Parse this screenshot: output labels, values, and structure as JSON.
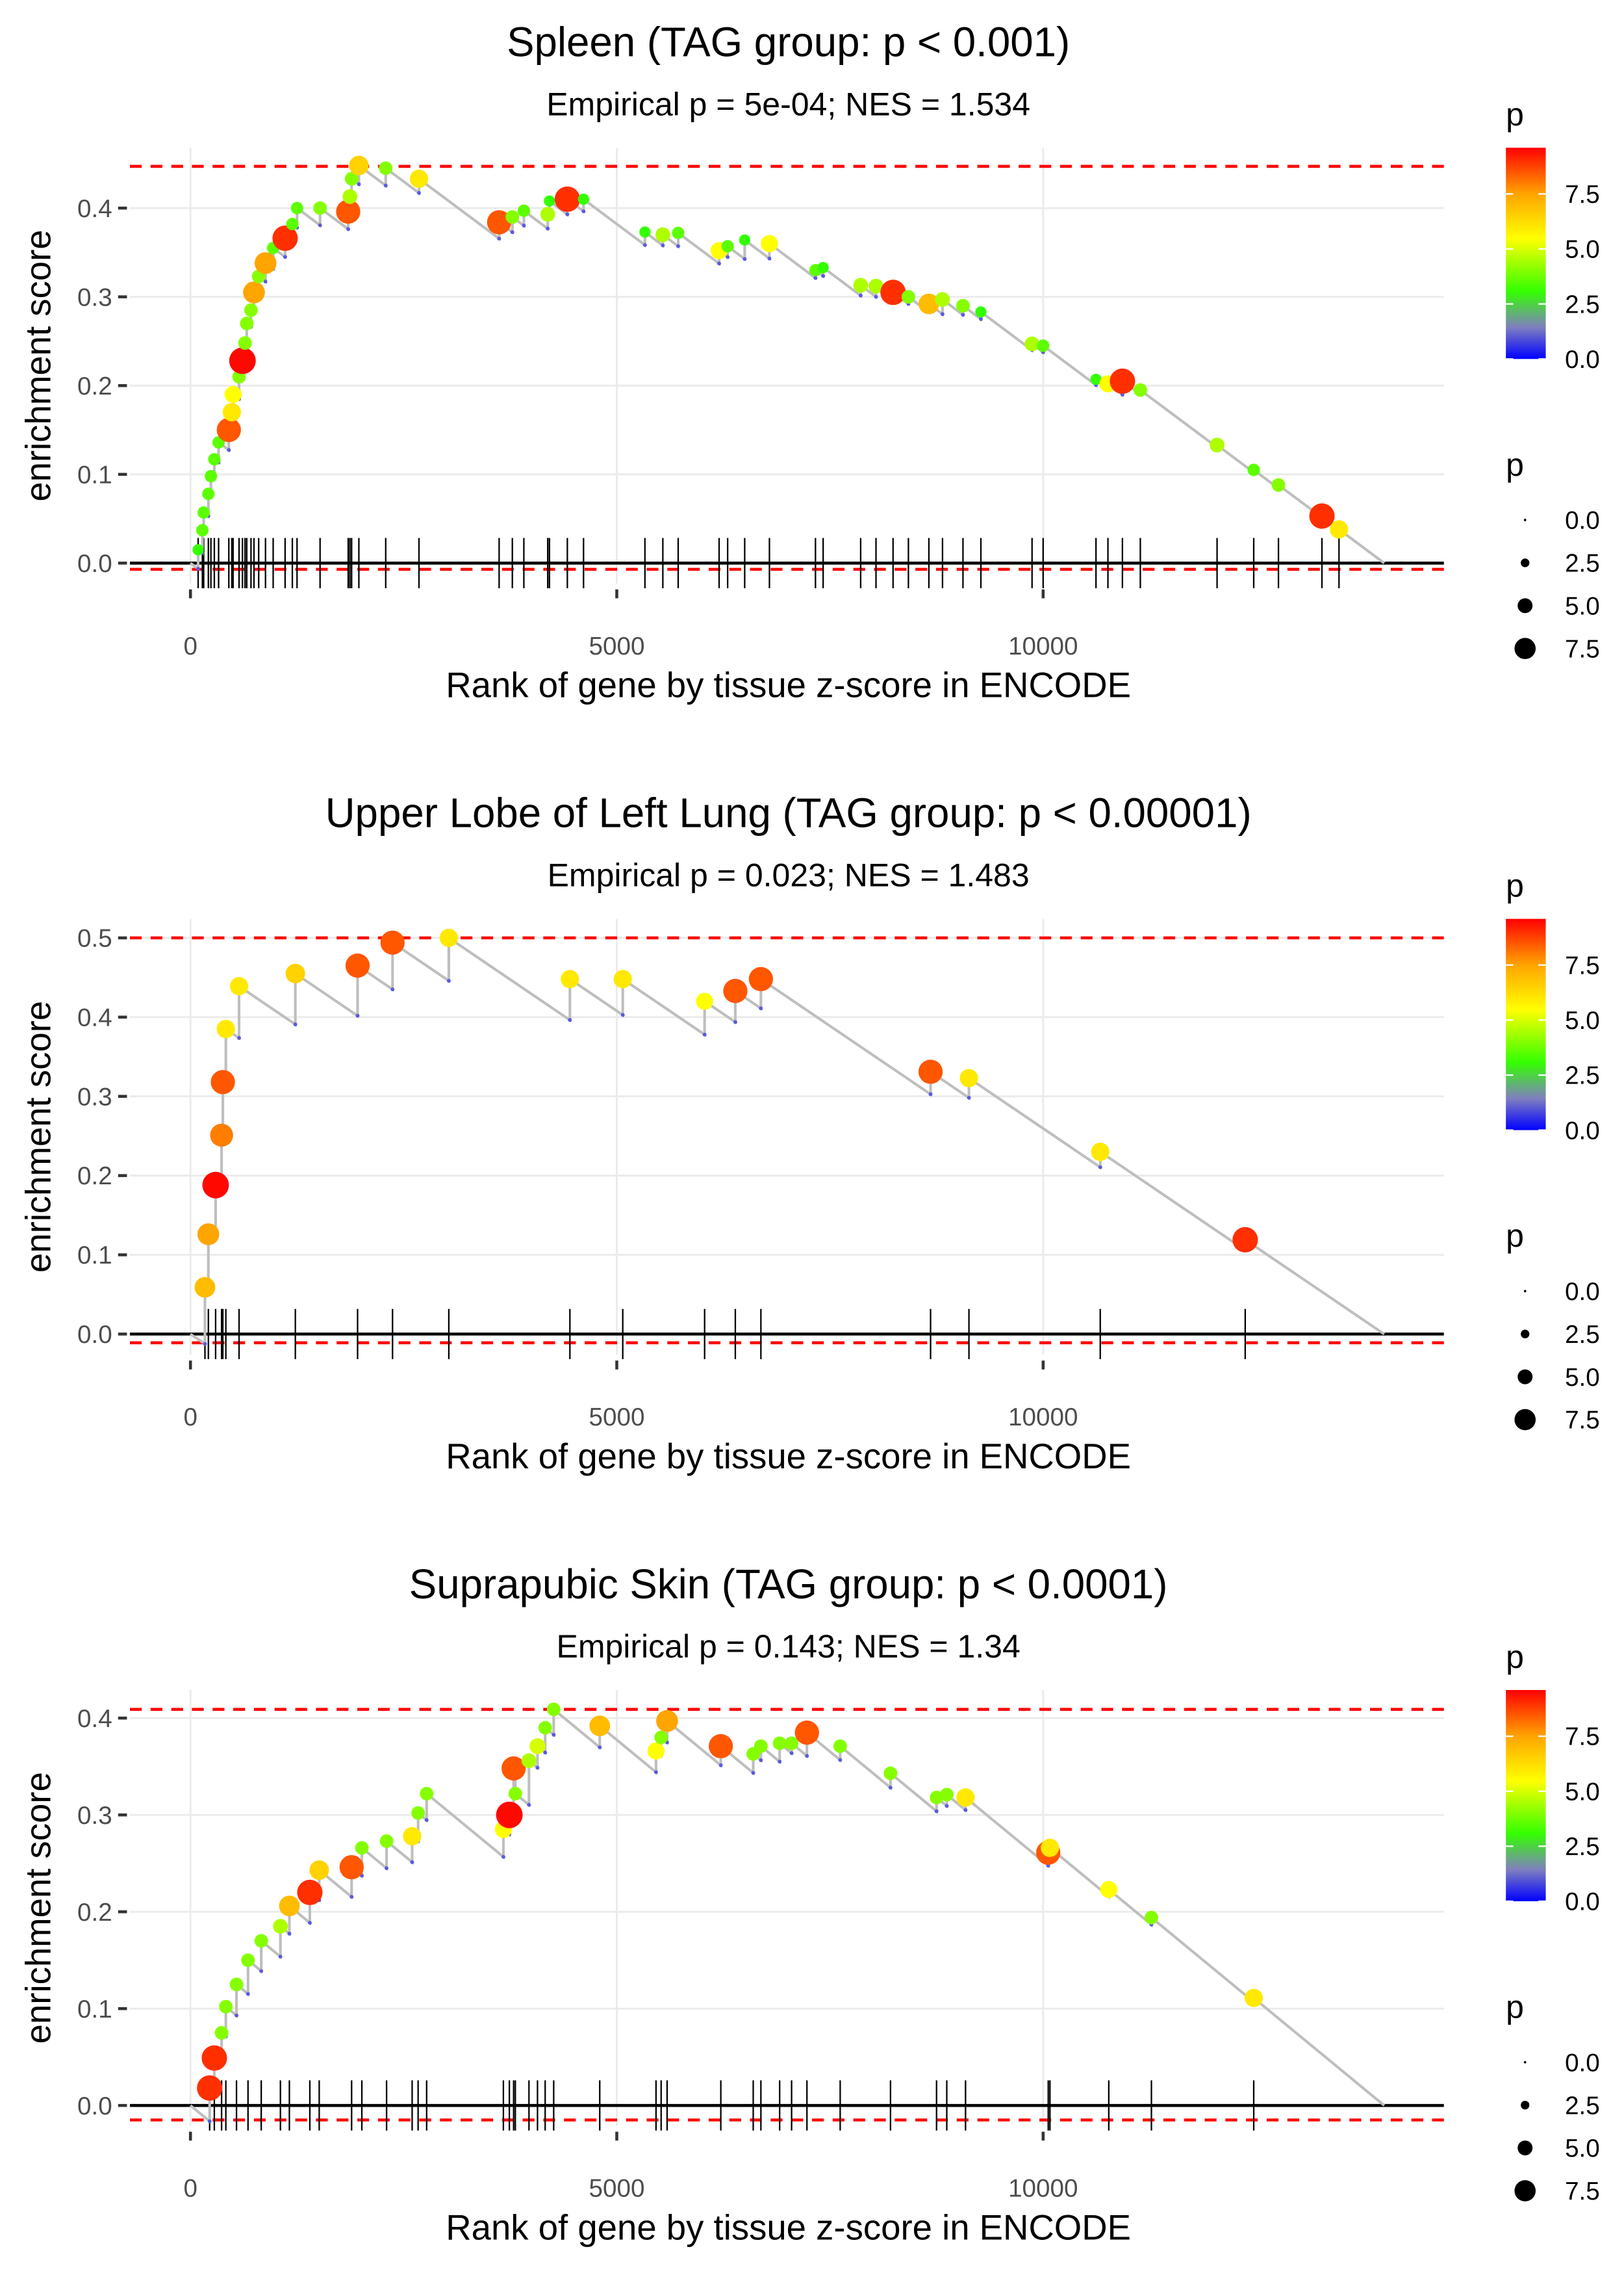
{
  "colors": {
    "line": "#bebebe",
    "dashed": "#ff0000",
    "grid": "#ebebeb",
    "low": "#0000ff",
    "mid": "#33ff00",
    "high": "#ff0000"
  },
  "chart_data": [
    {
      "type": "scatter",
      "title": "Spleen (TAG group: p < 0.001)",
      "subtitle": "Empirical p = 5e-04; NES = 1.534",
      "xlabel": "Rank of gene by tissue z-score in ENCODE",
      "ylabel": "enrichment score",
      "xlim": [
        -710,
        14700
      ],
      "ylim": [
        -0.023,
        0.468
      ],
      "xticks": [
        0,
        5000,
        10000
      ],
      "xtick_labels": [
        "0",
        "5000",
        "10000"
      ],
      "yticks": [
        0,
        0.1,
        0.2,
        0.3,
        0.4
      ],
      "ytick_labels": [
        "0.0",
        "0.1",
        "0.2",
        "0.3",
        "0.4"
      ],
      "dashed_max": 0.447,
      "dashed_min": -0.007,
      "end_rank": 14000,
      "legend_color": {
        "title": "p",
        "labels": [
          "7.5",
          "5.0",
          "2.5",
          "0.0"
        ]
      },
      "legend_size": {
        "title": "p",
        "labels": [
          "0.0",
          "2.5",
          "5.0",
          "7.5"
        ]
      },
      "points": [
        [
          90,
          0.015,
          3
        ],
        [
          140,
          0.037,
          3.5
        ],
        [
          155,
          0.057,
          3.5
        ],
        [
          210,
          0.078,
          3.5
        ],
        [
          240,
          0.098,
          3.5
        ],
        [
          280,
          0.117,
          3.5
        ],
        [
          330,
          0.136,
          3.5
        ],
        [
          450,
          0.15,
          8.5
        ],
        [
          485,
          0.17,
          6
        ],
        [
          500,
          0.19,
          5.5
        ],
        [
          570,
          0.21,
          4
        ],
        [
          610,
          0.228,
          9.5
        ],
        [
          640,
          0.248,
          4
        ],
        [
          660,
          0.27,
          4
        ],
        [
          710,
          0.285,
          4
        ],
        [
          745,
          0.305,
          7.5
        ],
        [
          800,
          0.323,
          4
        ],
        [
          880,
          0.338,
          7.5
        ],
        [
          970,
          0.355,
          3.5
        ],
        [
          1110,
          0.366,
          9
        ],
        [
          1195,
          0.382,
          3.5
        ],
        [
          1250,
          0.4,
          3.5
        ],
        [
          1520,
          0.4,
          4
        ],
        [
          1850,
          0.396,
          8.5
        ],
        [
          1870,
          0.413,
          4.5
        ],
        [
          1890,
          0.433,
          4
        ],
        [
          1975,
          0.448,
          6.5
        ],
        [
          2290,
          0.445,
          4
        ],
        [
          2680,
          0.433,
          6
        ],
        [
          3620,
          0.384,
          8.5
        ],
        [
          3775,
          0.39,
          4
        ],
        [
          3910,
          0.397,
          3.5
        ],
        [
          4190,
          0.393,
          4.5
        ],
        [
          4210,
          0.408,
          3
        ],
        [
          4420,
          0.41,
          9
        ],
        [
          4610,
          0.41,
          3
        ],
        [
          5330,
          0.373,
          3
        ],
        [
          5540,
          0.37,
          4.5
        ],
        [
          5720,
          0.372,
          3.5
        ],
        [
          6200,
          0.352,
          5.5
        ],
        [
          6300,
          0.357,
          3.5
        ],
        [
          6500,
          0.364,
          3
        ],
        [
          6790,
          0.36,
          5.5
        ],
        [
          7330,
          0.33,
          3.5
        ],
        [
          7420,
          0.333,
          3
        ],
        [
          7860,
          0.313,
          4.5
        ],
        [
          8040,
          0.312,
          4.5
        ],
        [
          8240,
          0.305,
          9
        ],
        [
          8420,
          0.3,
          4
        ],
        [
          8660,
          0.292,
          7
        ],
        [
          8820,
          0.297,
          4.5
        ],
        [
          9060,
          0.29,
          4
        ],
        [
          9270,
          0.283,
          3
        ],
        [
          9870,
          0.247,
          4.5
        ],
        [
          10000,
          0.245,
          3.5
        ],
        [
          10620,
          0.207,
          3
        ],
        [
          10760,
          0.202,
          5.5
        ],
        [
          10930,
          0.205,
          9
        ],
        [
          11140,
          0.195,
          4
        ],
        [
          12040,
          0.133,
          4.5
        ],
        [
          12470,
          0.105,
          3.5
        ],
        [
          12760,
          0.088,
          4
        ],
        [
          13270,
          0.053,
          9
        ],
        [
          13470,
          0.038,
          6
        ]
      ]
    },
    {
      "type": "scatter",
      "title": "Upper Lobe of Left Lung (TAG group: p < 0.00001)",
      "subtitle": "Empirical p = 0.023; NES = 1.483",
      "xlabel": "Rank of gene by tissue z-score in ENCODE",
      "ylabel": "enrichment score",
      "xlim": [
        -710,
        14700
      ],
      "ylim": [
        -0.026,
        0.524
      ],
      "xticks": [
        0,
        5000,
        10000
      ],
      "xtick_labels": [
        "0",
        "5000",
        "10000"
      ],
      "yticks": [
        0,
        0.1,
        0.2,
        0.3,
        0.4,
        0.5
      ],
      "ytick_labels": [
        "0.0",
        "0.1",
        "0.2",
        "0.3",
        "0.4",
        "0.5"
      ],
      "dashed_max": 0.5,
      "dashed_min": -0.011,
      "end_rank": 14000,
      "legend_color": {
        "title": "p",
        "labels": [
          "7.5",
          "5.0",
          "2.5",
          "0.0"
        ]
      },
      "legend_size": {
        "title": "p",
        "labels": [
          "0.0",
          "2.5",
          "5.0",
          "7.5"
        ]
      },
      "points": [
        [
          170,
          0.059,
          7
        ],
        [
          210,
          0.126,
          7.5
        ],
        [
          295,
          0.188,
          9.5
        ],
        [
          365,
          0.251,
          8
        ],
        [
          380,
          0.318,
          8.5
        ],
        [
          415,
          0.385,
          6
        ],
        [
          570,
          0.439,
          6
        ],
        [
          1230,
          0.455,
          6.5
        ],
        [
          1960,
          0.465,
          8.5
        ],
        [
          2370,
          0.494,
          8.5
        ],
        [
          3030,
          0.5,
          6
        ],
        [
          4450,
          0.448,
          6
        ],
        [
          5070,
          0.448,
          6
        ],
        [
          6030,
          0.42,
          5.5
        ],
        [
          6390,
          0.433,
          8.5
        ],
        [
          6690,
          0.448,
          8.5
        ],
        [
          8680,
          0.331,
          8.5
        ],
        [
          9130,
          0.323,
          6
        ],
        [
          10670,
          0.23,
          6
        ],
        [
          12370,
          0.119,
          9
        ]
      ]
    },
    {
      "type": "scatter",
      "title": "Suprapubic Skin (TAG group: p < 0.0001)",
      "subtitle": "Empirical p = 0.143; NES = 1.34",
      "xlabel": "Rank of gene by tissue z-score in ENCODE",
      "ylabel": "enrichment score",
      "xlim": [
        -710,
        14700
      ],
      "ylim": [
        -0.021,
        0.429
      ],
      "xticks": [
        0,
        5000,
        10000
      ],
      "xtick_labels": [
        "0",
        "5000",
        "10000"
      ],
      "yticks": [
        0,
        0.1,
        0.2,
        0.3,
        0.4
      ],
      "ytick_labels": [
        "0.0",
        "0.1",
        "0.2",
        "0.3",
        "0.4"
      ],
      "dashed_max": 0.409,
      "dashed_min": -0.015,
      "end_rank": 14000,
      "legend_color": {
        "title": "p",
        "labels": [
          "7.5",
          "5.0",
          "2.5",
          "0.0"
        ]
      },
      "legend_size": {
        "title": "p",
        "labels": [
          "0.0",
          "2.5",
          "5.0",
          "7.5"
        ]
      },
      "points": [
        [
          225,
          0.018,
          9
        ],
        [
          280,
          0.049,
          9
        ],
        [
          365,
          0.075,
          4
        ],
        [
          415,
          0.102,
          4
        ],
        [
          540,
          0.125,
          4
        ],
        [
          675,
          0.15,
          4
        ],
        [
          830,
          0.17,
          4
        ],
        [
          1055,
          0.185,
          4.5
        ],
        [
          1160,
          0.206,
          7
        ],
        [
          1400,
          0.22,
          9
        ],
        [
          1510,
          0.243,
          6.5
        ],
        [
          1890,
          0.246,
          8.5
        ],
        [
          2010,
          0.266,
          4
        ],
        [
          2300,
          0.273,
          4
        ],
        [
          2600,
          0.278,
          6
        ],
        [
          2670,
          0.302,
          4
        ],
        [
          2770,
          0.322,
          4
        ],
        [
          3670,
          0.285,
          5.5
        ],
        [
          3740,
          0.3,
          9.5
        ],
        [
          3790,
          0.348,
          8.5
        ],
        [
          3810,
          0.322,
          4
        ],
        [
          3970,
          0.356,
          4.5
        ],
        [
          4070,
          0.371,
          5
        ],
        [
          4160,
          0.39,
          4
        ],
        [
          4260,
          0.409,
          4
        ],
        [
          4800,
          0.392,
          7
        ],
        [
          5460,
          0.366,
          5.5
        ],
        [
          5520,
          0.38,
          4
        ],
        [
          5590,
          0.397,
          7.5
        ],
        [
          6220,
          0.371,
          8.5
        ],
        [
          6600,
          0.363,
          4
        ],
        [
          6690,
          0.371,
          4
        ],
        [
          6910,
          0.374,
          4
        ],
        [
          7050,
          0.374,
          4
        ],
        [
          7230,
          0.385,
          8.5
        ],
        [
          7620,
          0.371,
          4
        ],
        [
          8210,
          0.343,
          4
        ],
        [
          8750,
          0.318,
          4
        ],
        [
          8870,
          0.321,
          4
        ],
        [
          9090,
          0.318,
          6
        ],
        [
          10060,
          0.261,
          8.5
        ],
        [
          10080,
          0.266,
          6
        ],
        [
          10770,
          0.223,
          5.5
        ],
        [
          11270,
          0.194,
          4
        ],
        [
          12470,
          0.111,
          6
        ]
      ]
    }
  ]
}
